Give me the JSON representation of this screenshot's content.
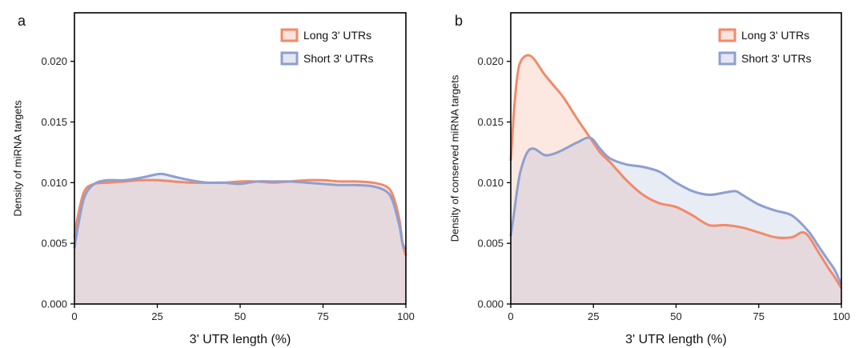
{
  "colors": {
    "long": "#f08a6a",
    "short": "#8e9fcf"
  },
  "chart_data": [
    {
      "type": "area",
      "panel_label": "a",
      "xlabel": "3' UTR length (%)",
      "ylabel": "Density of miRNA targets",
      "xlim": [
        0,
        100
      ],
      "ylim": [
        0,
        0.024
      ],
      "xticks": [
        0,
        25,
        50,
        75,
        100
      ],
      "yticks": [
        0.0,
        0.005,
        0.01,
        0.015,
        0.02
      ],
      "xtick_labels": [
        "0",
        "25",
        "50",
        "75",
        "100"
      ],
      "ytick_labels": [
        "0.000",
        "0.005",
        "0.010",
        "0.015",
        "0.020"
      ],
      "legend_position": "top-right",
      "series": [
        {
          "name": "Long 3' UTRs",
          "color_key": "long",
          "x": [
            0,
            1,
            3,
            6,
            10,
            15,
            20,
            25,
            30,
            35,
            40,
            45,
            50,
            55,
            60,
            65,
            70,
            75,
            80,
            85,
            90,
            94,
            96,
            98,
            99,
            100
          ],
          "y": [
            0.0055,
            0.0072,
            0.0093,
            0.0099,
            0.01,
            0.0101,
            0.0102,
            0.0102,
            0.0101,
            0.01,
            0.01,
            0.01,
            0.0101,
            0.0101,
            0.01,
            0.0101,
            0.0102,
            0.0102,
            0.0101,
            0.0101,
            0.01,
            0.0097,
            0.009,
            0.007,
            0.005,
            0.004
          ]
        },
        {
          "name": "Short 3' UTRs",
          "color_key": "short",
          "x": [
            0,
            1,
            3,
            6,
            10,
            15,
            20,
            25,
            27,
            30,
            35,
            40,
            45,
            50,
            55,
            60,
            65,
            70,
            75,
            80,
            85,
            90,
            94,
            96,
            98,
            99,
            100
          ],
          "y": [
            0.0046,
            0.0063,
            0.0088,
            0.0099,
            0.0102,
            0.0102,
            0.0104,
            0.0107,
            0.0107,
            0.0105,
            0.0102,
            0.01,
            0.01,
            0.0099,
            0.0101,
            0.0101,
            0.0101,
            0.01,
            0.0099,
            0.0098,
            0.0098,
            0.0097,
            0.0093,
            0.0085,
            0.0065,
            0.005,
            0.0045
          ]
        }
      ]
    },
    {
      "type": "area",
      "panel_label": "b",
      "xlabel": "3' UTR length (%)",
      "ylabel": "Density of conserved miRNA targets",
      "xlim": [
        0,
        100
      ],
      "ylim": [
        0,
        0.024
      ],
      "xticks": [
        0,
        25,
        50,
        75,
        100
      ],
      "yticks": [
        0.0,
        0.005,
        0.01,
        0.015,
        0.02
      ],
      "xtick_labels": [
        "0",
        "25",
        "50",
        "75",
        "100"
      ],
      "ytick_labels": [
        "0.000",
        "0.005",
        "0.010",
        "0.015",
        "0.020"
      ],
      "legend_position": "top-right",
      "series": [
        {
          "name": "Long 3' UTRs",
          "color_key": "long",
          "x": [
            0,
            1,
            2,
            3,
            5,
            7,
            10,
            13,
            16,
            20,
            24,
            27,
            30,
            35,
            40,
            45,
            50,
            55,
            60,
            65,
            70,
            75,
            80,
            85,
            88,
            90,
            93,
            96,
            98,
            100
          ],
          "y": [
            0.0118,
            0.016,
            0.0188,
            0.02,
            0.0205,
            0.0202,
            0.019,
            0.018,
            0.017,
            0.0153,
            0.0137,
            0.0125,
            0.0117,
            0.0102,
            0.009,
            0.0083,
            0.008,
            0.0073,
            0.0065,
            0.0065,
            0.0063,
            0.0059,
            0.0055,
            0.0055,
            0.0059,
            0.0056,
            0.0043,
            0.003,
            0.0022,
            0.0013
          ]
        },
        {
          "name": "Short 3' UTRs",
          "color_key": "short",
          "x": [
            0,
            1,
            2,
            3,
            5,
            7,
            10,
            12,
            15,
            20,
            24,
            27,
            30,
            35,
            40,
            45,
            50,
            55,
            60,
            65,
            68,
            70,
            75,
            80,
            85,
            90,
            93,
            96,
            98,
            100
          ],
          "y": [
            0.0056,
            0.0075,
            0.0095,
            0.011,
            0.0125,
            0.0128,
            0.0123,
            0.0123,
            0.0126,
            0.0133,
            0.0137,
            0.0128,
            0.012,
            0.0115,
            0.0113,
            0.0109,
            0.01,
            0.0093,
            0.009,
            0.0092,
            0.0093,
            0.009,
            0.0082,
            0.0077,
            0.0073,
            0.006,
            0.0048,
            0.0036,
            0.0028,
            0.0016
          ]
        }
      ]
    }
  ]
}
